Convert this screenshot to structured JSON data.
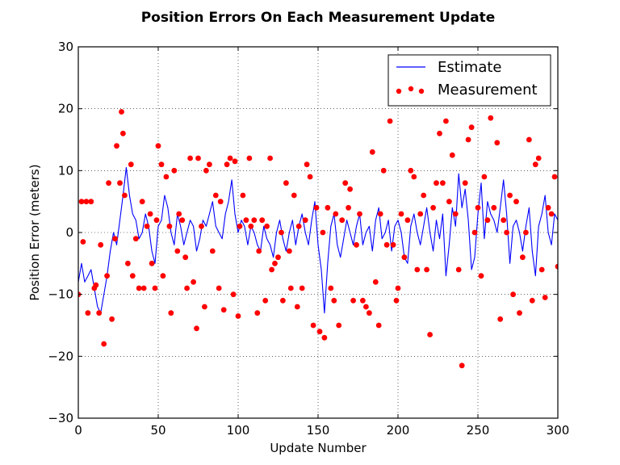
{
  "chart_data": {
    "type": "line",
    "title": "Position Errors On Each Measurement Update",
    "xlabel": "Update Number",
    "ylabel": "Position Error (meters)",
    "xlim": [
      0,
      300
    ],
    "ylim": [
      -30,
      30
    ],
    "xticks": [
      0,
      50,
      100,
      150,
      200,
      250,
      300
    ],
    "yticks": [
      -30,
      -20,
      -10,
      0,
      10,
      20,
      30
    ],
    "xtick_labels": [
      "0",
      "50",
      "100",
      "150",
      "200",
      "250",
      "300"
    ],
    "ytick_labels": [
      "−30",
      "−20",
      "−10",
      "0",
      "10",
      "20",
      "30"
    ],
    "grid": true,
    "grid_style": "dotted",
    "legend_position": "top-right",
    "series": [
      {
        "name": "Estimate",
        "kind": "line",
        "color": "#0000ff",
        "x": [
          0,
          2,
          4,
          6,
          8,
          10,
          12,
          14,
          16,
          18,
          20,
          22,
          24,
          26,
          28,
          30,
          32,
          34,
          36,
          38,
          40,
          42,
          44,
          46,
          48,
          50,
          52,
          54,
          56,
          58,
          60,
          62,
          64,
          66,
          68,
          70,
          72,
          74,
          76,
          78,
          80,
          82,
          84,
          86,
          88,
          90,
          92,
          94,
          96,
          98,
          100,
          102,
          104,
          106,
          108,
          110,
          112,
          114,
          116,
          118,
          120,
          122,
          124,
          126,
          128,
          130,
          132,
          134,
          136,
          138,
          140,
          142,
          144,
          146,
          148,
          150,
          152,
          154,
          156,
          158,
          160,
          162,
          164,
          166,
          168,
          170,
          172,
          174,
          176,
          178,
          180,
          182,
          184,
          186,
          188,
          190,
          192,
          194,
          196,
          198,
          200,
          202,
          204,
          206,
          208,
          210,
          212,
          214,
          216,
          218,
          220,
          222,
          224,
          226,
          228,
          230,
          232,
          234,
          236,
          238,
          240,
          242,
          244,
          246,
          248,
          250,
          252,
          254,
          256,
          258,
          260,
          262,
          264,
          266,
          268,
          270,
          272,
          274,
          276,
          278,
          280,
          282,
          284,
          286,
          288,
          290,
          292,
          294,
          296,
          298,
          300
        ],
        "y": [
          -8,
          -5,
          -8,
          -7,
          -6,
          -9,
          -12,
          -13,
          -10,
          -7,
          -3,
          0,
          -2,
          2,
          6,
          10.5,
          6,
          3,
          2,
          -1,
          0,
          3,
          1,
          -3,
          -5,
          1,
          2,
          6,
          4,
          0,
          -2,
          3,
          1,
          -2,
          0,
          2,
          1,
          -3,
          -1,
          2,
          1,
          3,
          5,
          1,
          0,
          -1,
          3,
          5,
          8.5,
          3,
          0,
          2,
          1,
          -2,
          1,
          0,
          -2,
          -3,
          1,
          -1,
          -2,
          -4,
          0,
          2,
          -1,
          -3,
          0,
          2,
          -2,
          1,
          3,
          0,
          -2,
          2,
          5,
          -2,
          -6,
          -13,
          -5,
          1,
          3,
          -2,
          -4,
          -1,
          2,
          0,
          -2,
          1,
          3,
          -2,
          0,
          1,
          -3,
          2,
          4,
          -1,
          0,
          2,
          -3,
          1,
          2,
          0,
          -4,
          -5,
          1,
          3,
          0,
          -2,
          1,
          4,
          0,
          -3,
          2,
          -1,
          3,
          -7,
          -2,
          4,
          1,
          9.5,
          4,
          7,
          2,
          -6,
          -4,
          3,
          8,
          -1,
          5,
          3,
          2,
          0,
          4,
          8.5,
          3,
          -5,
          1,
          2,
          0,
          -3,
          1,
          4,
          -3,
          -7,
          1,
          3,
          6,
          0,
          -2,
          3,
          2
        ]
      },
      {
        "name": "Measurement",
        "kind": "scatter",
        "color": "#ff0000",
        "x": [
          0,
          2,
          3,
          5,
          6,
          8,
          10,
          11,
          13,
          14,
          16,
          18,
          19,
          21,
          23,
          24,
          26,
          27,
          28,
          29,
          31,
          33,
          34,
          36,
          38,
          40,
          41,
          43,
          45,
          46,
          48,
          49,
          50,
          52,
          53,
          55,
          57,
          58,
          60,
          62,
          63,
          65,
          67,
          68,
          70,
          72,
          74,
          75,
          77,
          79,
          80,
          82,
          84,
          86,
          88,
          89,
          91,
          93,
          95,
          97,
          98,
          100,
          101,
          103,
          105,
          107,
          108,
          110,
          112,
          113,
          115,
          117,
          118,
          120,
          121,
          123,
          125,
          127,
          128,
          130,
          132,
          133,
          135,
          137,
          138,
          140,
          142,
          143,
          145,
          147,
          149,
          151,
          153,
          154,
          156,
          158,
          160,
          161,
          163,
          165,
          167,
          169,
          170,
          172,
          174,
          176,
          178,
          180,
          182,
          184,
          186,
          188,
          189,
          191,
          193,
          195,
          197,
          199,
          200,
          202,
          204,
          206,
          208,
          210,
          212,
          214,
          216,
          218,
          220,
          222,
          224,
          226,
          228,
          230,
          232,
          234,
          236,
          238,
          240,
          242,
          244,
          246,
          248,
          250,
          252,
          254,
          256,
          258,
          260,
          262,
          264,
          266,
          268,
          270,
          272,
          274,
          276,
          278,
          280,
          282,
          284,
          286,
          288,
          290,
          292,
          294,
          296,
          298,
          300
        ],
        "y": [
          -10,
          5,
          -1.5,
          5,
          -13,
          5,
          -9,
          -8.5,
          -13,
          -2,
          -18,
          -7,
          8,
          -14,
          -1,
          14,
          8,
          19.5,
          16,
          6,
          -5,
          11,
          -7,
          -1,
          -9,
          5,
          -9,
          1,
          3,
          -5,
          -9,
          2,
          14,
          11,
          -7,
          9,
          1,
          -13,
          10,
          -3,
          3,
          2,
          -4,
          -9,
          12,
          -8,
          -15.5,
          12,
          1,
          -12,
          10,
          11,
          -3,
          6,
          -9,
          5,
          -12.5,
          11,
          12,
          -10,
          11.5,
          -13.5,
          1,
          6,
          2,
          12,
          1,
          2,
          -13,
          -3,
          2,
          -11,
          1,
          12,
          -6,
          -5,
          -4,
          0,
          -11,
          8,
          -3,
          -9,
          6,
          -12,
          1,
          -9,
          2,
          11,
          9,
          -15,
          4,
          -16,
          0,
          -17,
          4,
          -9,
          -11,
          3,
          -15,
          2,
          8,
          4,
          7,
          -11,
          -2,
          3,
          -11,
          -12,
          -13,
          13,
          -8,
          -15,
          3,
          10,
          -2,
          18,
          -2,
          -11,
          -9,
          3,
          -4,
          2,
          10,
          9,
          -6,
          3,
          6,
          -6,
          -16.5,
          4,
          8,
          16,
          8,
          18,
          5,
          12.5,
          3,
          -6,
          -21.5,
          8,
          15,
          17,
          0,
          4,
          -7,
          9,
          2,
          18.5,
          4,
          14.5,
          -14,
          2,
          0,
          6,
          -10,
          5,
          -13,
          -4,
          0,
          15,
          -11,
          11,
          12,
          -6,
          -10.5,
          4,
          3,
          9,
          -5.5
        ]
      }
    ]
  }
}
